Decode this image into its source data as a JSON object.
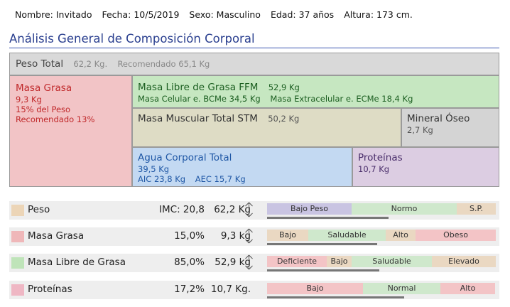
{
  "patient": {
    "name": "Nombre: Invitado",
    "date": "Fecha: 10/5/2019",
    "sex": "Sexo: Masculino",
    "age": "Edad: 37 años",
    "height": "Altura: 173 cm."
  },
  "analysis": {
    "title": "Análisis General de Composición Corporal",
    "peso_total": {
      "label": "Peso Total",
      "value": "62,2 Kg.",
      "recommended": "Recomendado 65,1 Kg"
    },
    "masa_grasa": {
      "label": "Masa Grasa",
      "value": "9,3 Kg",
      "percent": "15% del Peso",
      "recommended": "Recomendado 13%"
    },
    "ffm": {
      "label": "Masa Libre de Grasa FFM",
      "value": "52,9 Kg",
      "bcm": "Masa Celular e. BCMe 34,5 Kg",
      "ecm": "Masa Extracelular e. ECMe 18,4 Kg"
    },
    "smm": {
      "label": "Masa Muscular Total STM",
      "value": "50,2 Kg"
    },
    "mineral": {
      "label": "Mineral Óseo",
      "value": "2,7 Kg"
    },
    "agua": {
      "label": "Agua Corporal Total",
      "value": "39,5 Kg",
      "aic": "AIC 23,8 Kg",
      "aec": "AEC 15,7 Kg"
    },
    "proteinas": {
      "label": "Proteínas",
      "value": "10,7 Kg"
    }
  },
  "rows": [
    {
      "label": "Peso",
      "metric": "IMC: 20,8",
      "value": "62,2 Kg",
      "swatch": "#ecd5b7",
      "level": 0.53,
      "segments": [
        {
          "label": "Bajo Peso",
          "color": "#c9c4e2",
          "fraction": 0.37
        },
        {
          "label": "Normo",
          "color": "#cfe8cc",
          "fraction": 0.46
        },
        {
          "label": "S.P.",
          "color": "#ead8c2",
          "fraction": 0.17
        }
      ]
    },
    {
      "label": "Masa Grasa",
      "metric": "15,0%",
      "value": "9,3 kg",
      "swatch": "#efb7b9",
      "level": 0.48,
      "segments": [
        {
          "label": "Bajo",
          "color": "#ead8c2",
          "fraction": 0.18
        },
        {
          "label": "Saludable",
          "color": "#cfe8cc",
          "fraction": 0.34
        },
        {
          "label": "Alto",
          "color": "#ead8c2",
          "fraction": 0.13
        },
        {
          "label": "Obeso",
          "color": "#f3c4c6",
          "fraction": 0.35
        }
      ]
    },
    {
      "label": "Masa Libre de Grasa",
      "metric": "85,0%",
      "value": "52,9 kg",
      "swatch": "#bfe4b9",
      "level": 0.49,
      "segments": [
        {
          "label": "Deficiente",
          "color": "#f3c4c6",
          "fraction": 0.26
        },
        {
          "label": "Bajo",
          "color": "#ead8c2",
          "fraction": 0.11
        },
        {
          "label": "Saludable",
          "color": "#cfe8cc",
          "fraction": 0.35
        },
        {
          "label": "Elevado",
          "color": "#ead8c2",
          "fraction": 0.28
        }
      ]
    },
    {
      "label": "Proteínas",
      "metric": "17,2%",
      "value": "10,7 Kg.",
      "swatch": "#efb7c4",
      "level": 0.6,
      "segments": [
        {
          "label": "Bajo",
          "color": "#f3c4c6",
          "fraction": 0.42
        },
        {
          "label": "Normal",
          "color": "#cfe8cc",
          "fraction": 0.34
        },
        {
          "label": "Alto",
          "color": "#f3c4c6",
          "fraction": 0.24
        }
      ]
    }
  ]
}
